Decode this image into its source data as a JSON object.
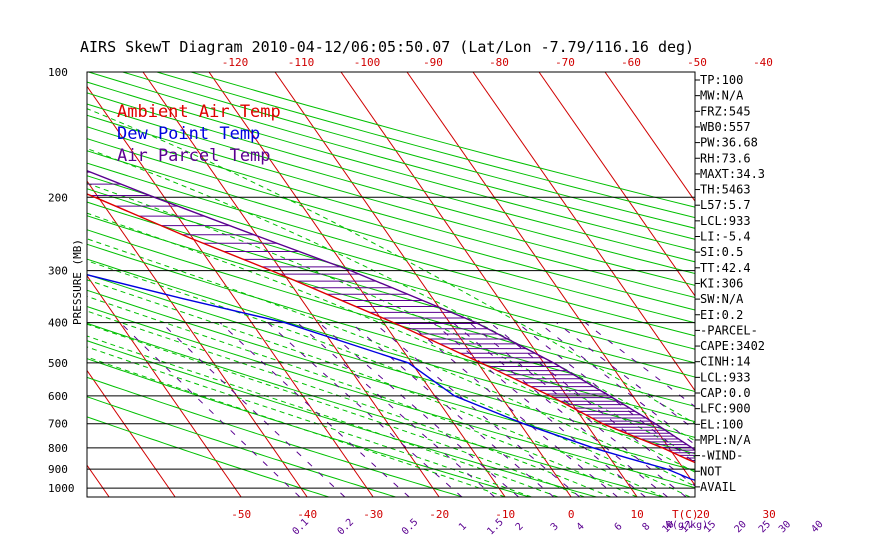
{
  "chart_data": {
    "type": "line",
    "title": "AIRS SkewT Diagram 2010-04-12/06:05:50.07 (Lat/Lon -7.79/116.16 deg)",
    "ylabel": "PRESSURE (MB)",
    "xlabel": "T(C)",
    "mixing_ratio_label": "W(g/kg)",
    "y_ticks": [
      "100",
      "200",
      "300",
      "400",
      "500",
      "600",
      "700",
      "800",
      "900",
      "1000"
    ],
    "y_values": [
      100,
      200,
      300,
      400,
      500,
      600,
      700,
      800,
      900,
      1000
    ],
    "x_ticks_bottom": [
      "-50",
      "-40",
      "-30",
      "-20",
      "-10",
      "0",
      "10",
      "20",
      "30"
    ],
    "x_ticks_top": [
      "-120",
      "-110",
      "-100",
      "-90",
      "-80",
      "-70",
      "-60",
      "-50",
      "-40"
    ],
    "mixing_ratios": [
      "0.1",
      "0.2",
      "0.5",
      "1",
      "1.5",
      "2",
      "3",
      "4",
      "6",
      "8",
      "10",
      "12",
      "15",
      "20",
      "25",
      "30",
      "40"
    ],
    "legend": [
      "Ambient Air Temp",
      "Dew Point Temp",
      "Air Parcel Temp"
    ],
    "legend_position": "top-left",
    "series": [
      {
        "name": "Ambient Air Temp",
        "color": "#e00000",
        "points": [
          [
            1000,
            27.5
          ],
          [
            950,
            25.5
          ],
          [
            900,
            24.0
          ],
          [
            850,
            21.5
          ],
          [
            800,
            19.0
          ],
          [
            700,
            12.5
          ],
          [
            600,
            7.5
          ],
          [
            500,
            0.5
          ],
          [
            400,
            -8.5
          ],
          [
            300,
            -21.5
          ],
          [
            250,
            -30.5
          ],
          [
            200,
            -40.5
          ],
          [
            150,
            -54.0
          ],
          [
            120,
            -65.0
          ],
          [
            100,
            -73.0
          ]
        ]
      },
      {
        "name": "Dew Point Temp",
        "color": "#0000e0",
        "points": [
          [
            1000,
            24.0
          ],
          [
            950,
            20.0
          ],
          [
            900,
            17.5
          ],
          [
            850,
            13.0
          ],
          [
            800,
            8.5
          ],
          [
            700,
            0.5
          ],
          [
            600,
            -7.0
          ],
          [
            500,
            -10.5
          ],
          [
            400,
            -25.0
          ],
          [
            350,
            -38.0
          ],
          [
            300,
            -52.0
          ],
          [
            250,
            -68.0
          ],
          [
            200,
            -70.0
          ],
          [
            150,
            -80.0
          ],
          [
            120,
            -84.0
          ],
          [
            100,
            -90.0
          ]
        ]
      },
      {
        "name": "Air Parcel Temp",
        "color": "#5a0090",
        "points": [
          [
            1000,
            30.0
          ],
          [
            950,
            27.0
          ],
          [
            900,
            25.5
          ],
          [
            850,
            24.5
          ],
          [
            800,
            23.5
          ],
          [
            700,
            20.5
          ],
          [
            600,
            16.5
          ],
          [
            500,
            11.5
          ],
          [
            400,
            4.0
          ],
          [
            300,
            -9.5
          ],
          [
            250,
            -19.5
          ],
          [
            200,
            -31.5
          ],
          [
            150,
            -46.0
          ],
          [
            120,
            -57.0
          ],
          [
            100,
            -64.0
          ]
        ]
      }
    ],
    "indices": [
      "TP:100",
      "MW:N/A",
      "FRZ:545",
      "WB0:557",
      "PW:36.68",
      "RH:73.6",
      "MAXT:34.3",
      "TH:5463",
      "L57:5.7",
      "LCL:933",
      "LI:-5.4",
      "SI:0.5",
      "TT:42.4",
      "KI:306",
      "SW:N/A",
      "EI:0.2",
      "-PARCEL-",
      "CAPE:3402",
      "CINH:14",
      "LCL:933",
      "CAP:0.0",
      "LFC:900",
      "EL:100",
      "MPL:N/A",
      "-WIND-",
      "NOT",
      "AVAIL"
    ],
    "colors": {
      "isotherm": "#d00000",
      "dry_adiabat": "#00c000",
      "moist_adiabat": "#00c000",
      "mixing_ratio": "#5a0090",
      "isobar": "#000000"
    }
  }
}
